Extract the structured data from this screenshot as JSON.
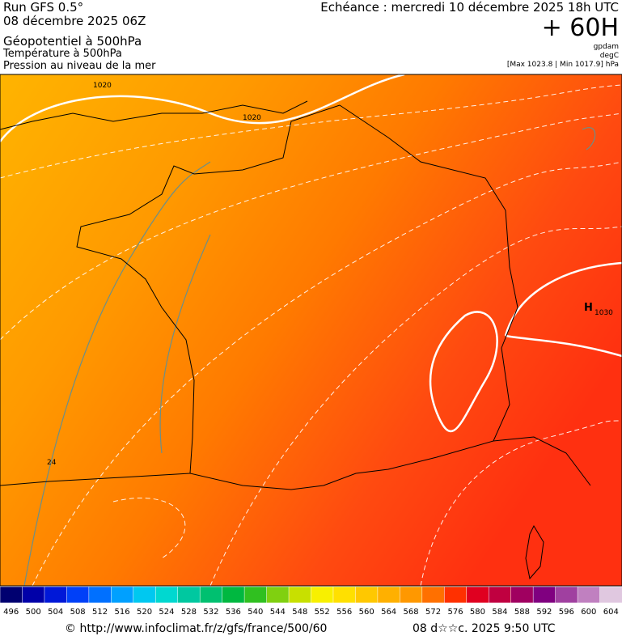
{
  "header": {
    "run": "Run GFS 0.5°",
    "date": "08 décembre 2025 06Z",
    "field1": "Géopotentiel à 500hPa",
    "field2": "Température à 500hPa",
    "field3": "Pression au niveau de la mer",
    "echeance": "Echéance : mercredi 10 décembre 2025 18h UTC",
    "lead": "+ 60H",
    "unit1": "gpdam",
    "unit2": "degC",
    "range": "[Max 1023.8 | Min 1017.9] hPa"
  },
  "map": {
    "labels": [
      "1020",
      "1020",
      "1030",
      "24",
      "H"
    ]
  },
  "colorbar": {
    "labels": [
      "496",
      "500",
      "504",
      "508",
      "512",
      "516",
      "520",
      "524",
      "528",
      "532",
      "536",
      "540",
      "544",
      "548",
      "552",
      "556",
      "560",
      "564",
      "568",
      "572",
      "576",
      "580",
      "584",
      "588",
      "592",
      "596",
      "600",
      "604"
    ],
    "colors": [
      "#000070",
      "#0000a8",
      "#0018d8",
      "#0040f8",
      "#0070ff",
      "#00a0ff",
      "#00c8f0",
      "#00d8d0",
      "#00c8a0",
      "#00c070",
      "#00b840",
      "#30c020",
      "#80d010",
      "#c8e000",
      "#f8f000",
      "#ffe000",
      "#ffc800",
      "#ffb000",
      "#ff9800",
      "#ff7000",
      "#ff3000",
      "#e00020",
      "#c00040",
      "#a00060",
      "#800080",
      "#a040a0",
      "#c080c0",
      "#e0c8e0"
    ]
  },
  "footer": {
    "url": "© http://www.infoclimat.fr/z/gfs/france/500/60",
    "stamp": "08 d☆☆c. 2025  9:50 UTC"
  }
}
